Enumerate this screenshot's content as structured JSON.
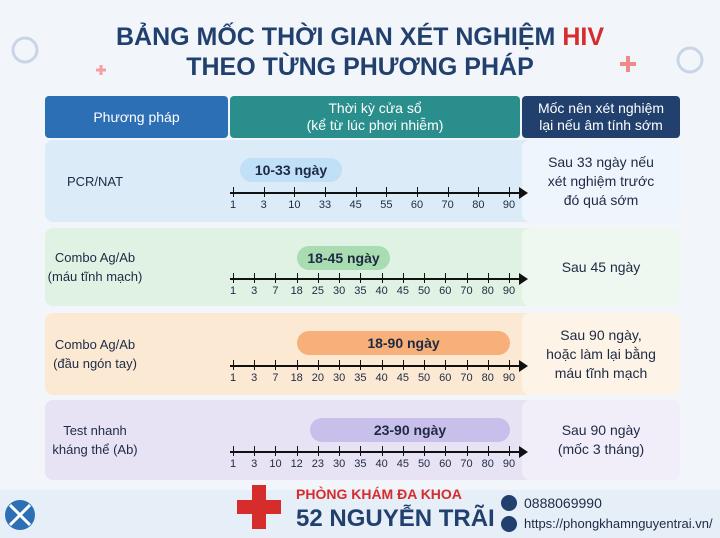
{
  "header": {
    "title_prefix": "BẢNG MỐC THỜI GIAN XÉT NGHIỆM ",
    "title_highlight": "HIV",
    "title_line2": "THEO TỪNG PHƯƠNG PHÁP"
  },
  "table": {
    "headers": [
      [
        "Phương pháp"
      ],
      [
        "Thời kỳ cửa sổ",
        "(kể từ lúc phơi nhiễm)"
      ],
      [
        "Mốc nên xét nghiệm",
        "lại nếu âm tính sớm"
      ]
    ],
    "rows": [
      {
        "method": [
          "PCR/NAT"
        ],
        "window": "10-33 ngày",
        "ticks": [
          1,
          3,
          10,
          33,
          45,
          55,
          60,
          70,
          80,
          90
        ],
        "recommendation": [
          "Sau 33 ngày nếu",
          "xét nghiệm trước",
          "đó quá sớm"
        ]
      },
      {
        "method": [
          "Combo Ag/Ab",
          "(máu tĩnh mạch)"
        ],
        "window": "18-45 ngày",
        "ticks": [
          1,
          3,
          7,
          18,
          25,
          30,
          35,
          40,
          45,
          50,
          60,
          70,
          80,
          90
        ],
        "recommendation": [
          "Sau 45 ngày"
        ]
      },
      {
        "method": [
          "Combo Ag/Ab",
          "(đầu ngón tay)"
        ],
        "window": "18-90 ngày",
        "ticks": [
          1,
          3,
          7,
          18,
          20,
          30,
          35,
          40,
          45,
          50,
          60,
          70,
          80,
          90
        ],
        "recommendation": [
          "Sau 90 ngày,",
          "hoặc làm lại bằng",
          "máu tĩnh mạch"
        ]
      },
      {
        "method": [
          "Test nhanh",
          "kháng thể (Ab)"
        ],
        "window": "23-90 ngày",
        "ticks": [
          1,
          3,
          10,
          12,
          23,
          30,
          35,
          40,
          45,
          50,
          60,
          70,
          80,
          90
        ],
        "recommendation": [
          "Sau 90 ngày",
          "(mốc 3 tháng)"
        ]
      }
    ]
  },
  "footer": {
    "clinic_top": "PHÒNG KHÁM ĐA KHOA",
    "clinic_name": "52 NGUYỄN TRÃI",
    "phone": "0888069990",
    "website": "https://phongkhamnguyentrai.vn/"
  }
}
